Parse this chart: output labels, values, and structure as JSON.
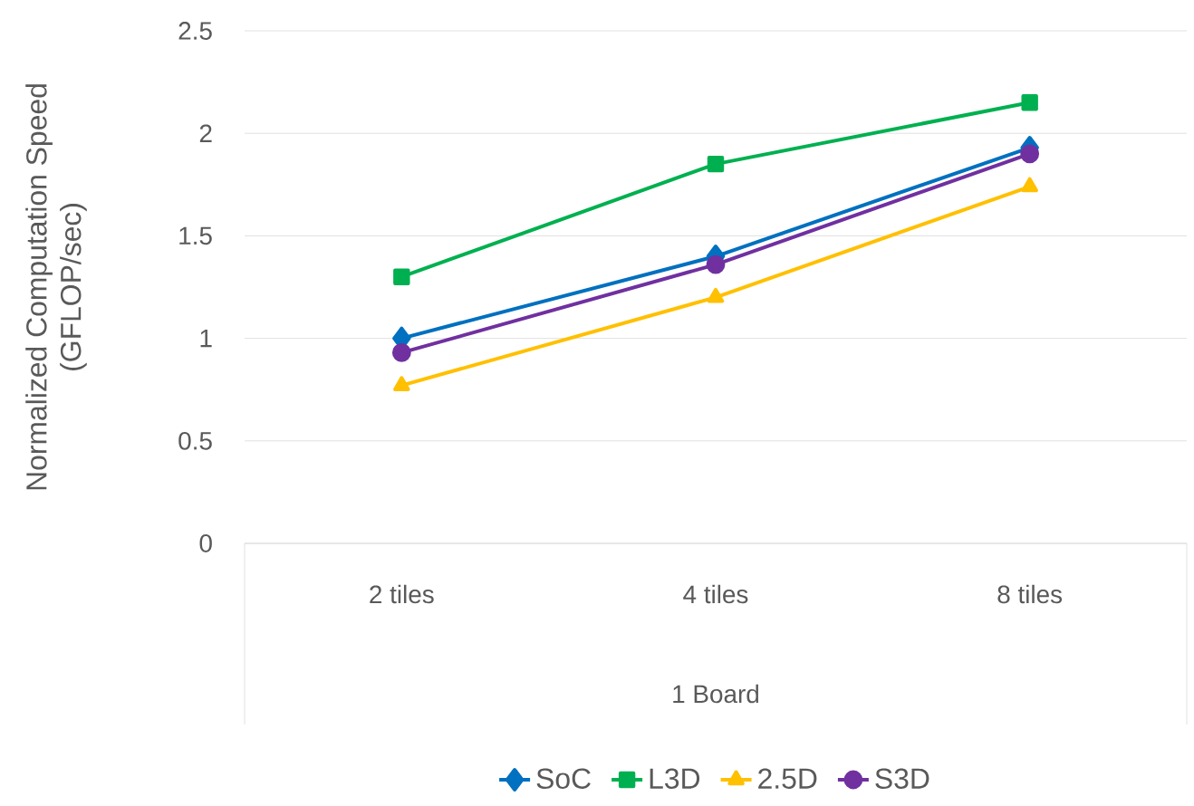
{
  "chart_data": {
    "type": "line",
    "ylabel": "Normalized Computation Speed (GFLOP/sec)",
    "xlabel": "1 Board",
    "categories": [
      "2 tiles",
      "4 tiles",
      "8 tiles"
    ],
    "series": [
      {
        "name": "SoC",
        "color": "#0070c0",
        "marker": "diamond",
        "values": [
          1.0,
          1.4,
          1.93
        ]
      },
      {
        "name": "L3D",
        "color": "#00b050",
        "marker": "square",
        "values": [
          1.3,
          1.85,
          2.15
        ]
      },
      {
        "name": "2.5D",
        "color": "#ffc000",
        "marker": "triangle",
        "values": [
          0.77,
          1.2,
          1.74
        ]
      },
      {
        "name": "S3D",
        "color": "#7030a0",
        "marker": "circle",
        "values": [
          0.93,
          1.36,
          1.9
        ]
      }
    ],
    "ylim": [
      0,
      2.5
    ],
    "yticks": [
      0,
      0.5,
      1,
      1.5,
      2,
      2.5
    ],
    "grid": "y",
    "legend": "bottom",
    "line_style": "solid"
  }
}
